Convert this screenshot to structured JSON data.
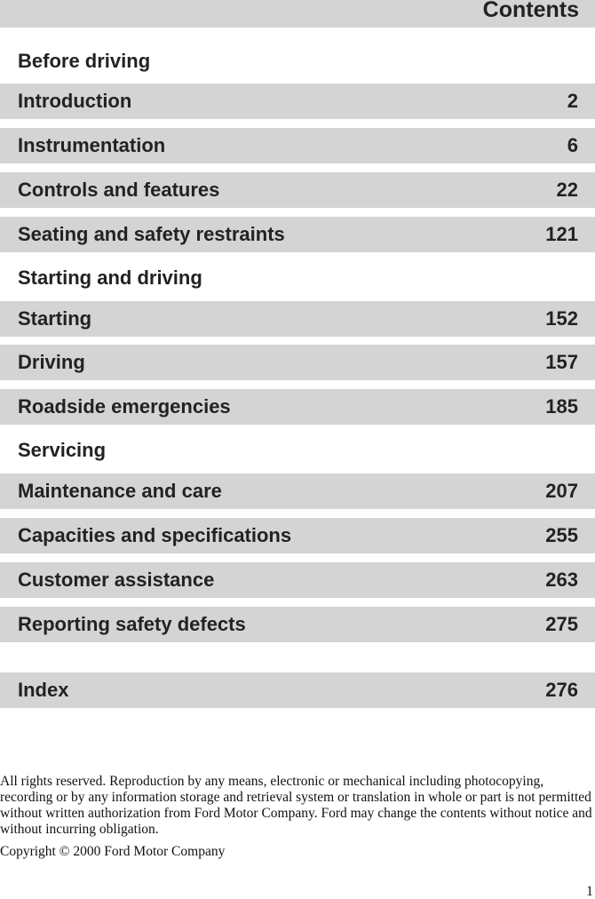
{
  "header": {
    "title": "Contents"
  },
  "sections": [
    {
      "heading": "Before driving",
      "items": [
        {
          "label": "Introduction",
          "page": "2"
        },
        {
          "label": "Instrumentation",
          "page": "6"
        },
        {
          "label": "Controls and features",
          "page": "22"
        },
        {
          "label": "Seating and safety restraints",
          "page": "121"
        }
      ]
    },
    {
      "heading": "Starting and driving",
      "items": [
        {
          "label": "Starting",
          "page": "152"
        },
        {
          "label": "Driving",
          "page": "157"
        },
        {
          "label": "Roadside emergencies",
          "page": "185"
        }
      ]
    },
    {
      "heading": "Servicing",
      "items": [
        {
          "label": "Maintenance and care",
          "page": "207"
        },
        {
          "label": "Capacities and specifications",
          "page": "255"
        },
        {
          "label": "Customer assistance",
          "page": "263"
        },
        {
          "label": "Reporting safety defects",
          "page": "275"
        }
      ]
    }
  ],
  "index": {
    "label": "Index",
    "page": "276"
  },
  "footer": {
    "rights": "All rights reserved. Reproduction by any means, electronic or mechanical including photocopying, recording or by any information storage and retrieval system or translation in whole or part is not permitted without written authorization from Ford Motor Company. Ford may change the contents without notice and without incurring obligation.",
    "copyright": "Copyright © 2000 Ford Motor Company",
    "page_number": "1"
  }
}
